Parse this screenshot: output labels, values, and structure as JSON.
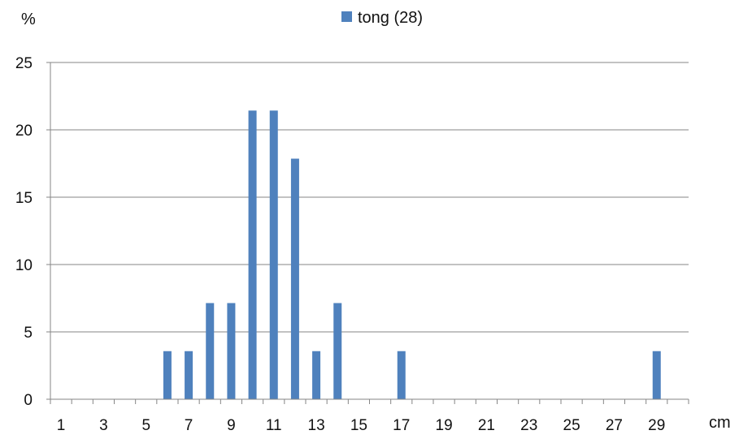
{
  "chart_data": {
    "type": "bar",
    "ylabel": "%",
    "xlabel": "cm",
    "ylim": [
      0,
      25
    ],
    "yticks": [
      0,
      5,
      10,
      15,
      20,
      25
    ],
    "xlim": [
      1,
      30
    ],
    "xtick_labels": [
      "1",
      "3",
      "5",
      "7",
      "9",
      "11",
      "13",
      "15",
      "17",
      "19",
      "21",
      "23",
      "25",
      "27",
      "29"
    ],
    "grid": "horizontal",
    "legend_position": "top",
    "series": [
      {
        "name": "tong (28)",
        "color": "#4f81bd",
        "x": [
          1,
          2,
          3,
          4,
          5,
          6,
          7,
          8,
          9,
          10,
          11,
          12,
          13,
          14,
          15,
          16,
          17,
          18,
          19,
          20,
          21,
          22,
          23,
          24,
          25,
          26,
          27,
          28,
          29,
          30
        ],
        "values": [
          0,
          0,
          0,
          0,
          0,
          3.57,
          3.57,
          7.14,
          7.14,
          21.43,
          21.43,
          17.86,
          3.57,
          7.14,
          0,
          0,
          3.57,
          0,
          0,
          0,
          0,
          0,
          0,
          0,
          0,
          0,
          0,
          0,
          3.57,
          0
        ]
      }
    ]
  }
}
